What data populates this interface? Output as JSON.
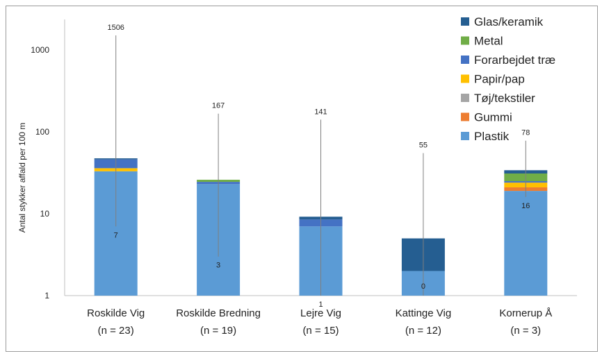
{
  "chart_data": {
    "type": "bar",
    "stacked": true,
    "y_scale": "log",
    "ylim": [
      1,
      2500
    ],
    "ylabel": "Antal stykker affald per 100 m",
    "yticks": [
      1,
      10,
      100,
      1000
    ],
    "yticklabels": [
      "1",
      "10",
      "100",
      "1000"
    ],
    "categories": [
      {
        "name": "Roskilde Vig",
        "n": "(n = 23)"
      },
      {
        "name": "Roskilde Bredning",
        "n": "(n = 19)"
      },
      {
        "name": "Lejre Vig",
        "n": "(n = 15)"
      },
      {
        "name": "Kattinge Vig",
        "n": "(n = 12)"
      },
      {
        "name": "Kornerup Å",
        "n": "(n = 3)"
      }
    ],
    "series": [
      {
        "name": "Plastik",
        "color": "#5b9bd5",
        "values": [
          33,
          23,
          7,
          2,
          19
        ]
      },
      {
        "name": "Gummi",
        "color": "#ed7d31",
        "values": [
          0,
          0,
          0,
          0,
          2
        ]
      },
      {
        "name": "Tøj/tekstiler",
        "color": "#a5a5a5",
        "values": [
          0,
          0,
          0,
          0,
          0
        ]
      },
      {
        "name": "Papir/pap",
        "color": "#ffc000",
        "values": [
          3,
          0,
          0,
          0,
          3
        ]
      },
      {
        "name": "Forarbejdet træ",
        "color": "#4472c4",
        "values": [
          10,
          1.5,
          1.5,
          0,
          1
        ]
      },
      {
        "name": "Metal",
        "color": "#70ad47",
        "values": [
          0,
          1.5,
          0,
          0,
          6
        ]
      },
      {
        "name": "Glas/keramik",
        "color": "#255e91",
        "values": [
          1.5,
          0,
          0.7,
          3,
          3
        ]
      }
    ],
    "range": {
      "min": [
        7,
        3,
        1,
        0,
        16
      ],
      "max": [
        1506,
        167,
        141,
        55,
        78
      ],
      "min_labels": [
        "7",
        "3",
        "1",
        "0",
        "16"
      ],
      "max_labels": [
        "1506",
        "167",
        "141",
        "55",
        "78"
      ]
    },
    "legend": {
      "placement": "top-right",
      "order": [
        "Glas/keramik",
        "Metal",
        "Forarbejdet træ",
        "Papir/pap",
        "Tøj/tekstiler",
        "Gummi",
        "Plastik"
      ]
    }
  }
}
